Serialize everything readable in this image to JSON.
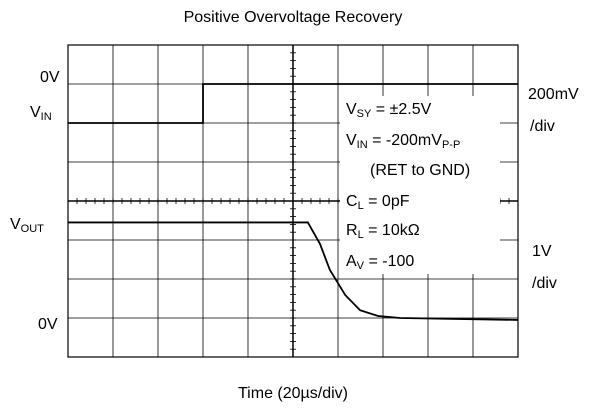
{
  "chart_data": {
    "type": "line",
    "title": "Positive Overvoltage Recovery",
    "xlabel": "Time (20µs/div)",
    "xlim": [
      0,
      10
    ],
    "ylim": [
      0,
      8
    ],
    "grid": true,
    "series": [
      {
        "color": "#000000",
        "x": [
          0,
          3,
          3,
          10
        ],
        "values": [
          6,
          6,
          7,
          7
        ]
      },
      {
        "color": "#000000",
        "x": [
          0,
          5.33,
          5.6,
          5.82,
          6.16,
          6.49,
          6.9,
          7.38,
          10
        ],
        "values": [
          3.45,
          3.45,
          2.9,
          2.23,
          1.59,
          1.2,
          1.05,
          1.0,
          0.95
        ]
      }
    ],
    "left_labels": [
      {
        "parts": [
          "0V"
        ]
      },
      {
        "parts": [
          "V",
          "IN"
        ]
      },
      {
        "parts": [
          "V",
          "OUT"
        ]
      },
      {
        "parts": [
          "0V"
        ]
      }
    ],
    "right_labels": [
      "200mV",
      "/div",
      "1V",
      "/div"
    ],
    "annotations": [
      {
        "parts": [
          "V",
          "SY",
          " = ±2.5V"
        ]
      },
      {
        "parts": [
          "V",
          "IN",
          " = -200mV",
          "P-P"
        ]
      },
      {
        "parts": [
          "(RET to GND)"
        ]
      },
      {
        "parts": [
          "C",
          "L",
          " =  0pF"
        ]
      },
      {
        "parts": [
          "R",
          "L",
          " = 10kΩ"
        ]
      },
      {
        "parts": [
          "A",
          "V",
          " = -100"
        ]
      }
    ]
  }
}
